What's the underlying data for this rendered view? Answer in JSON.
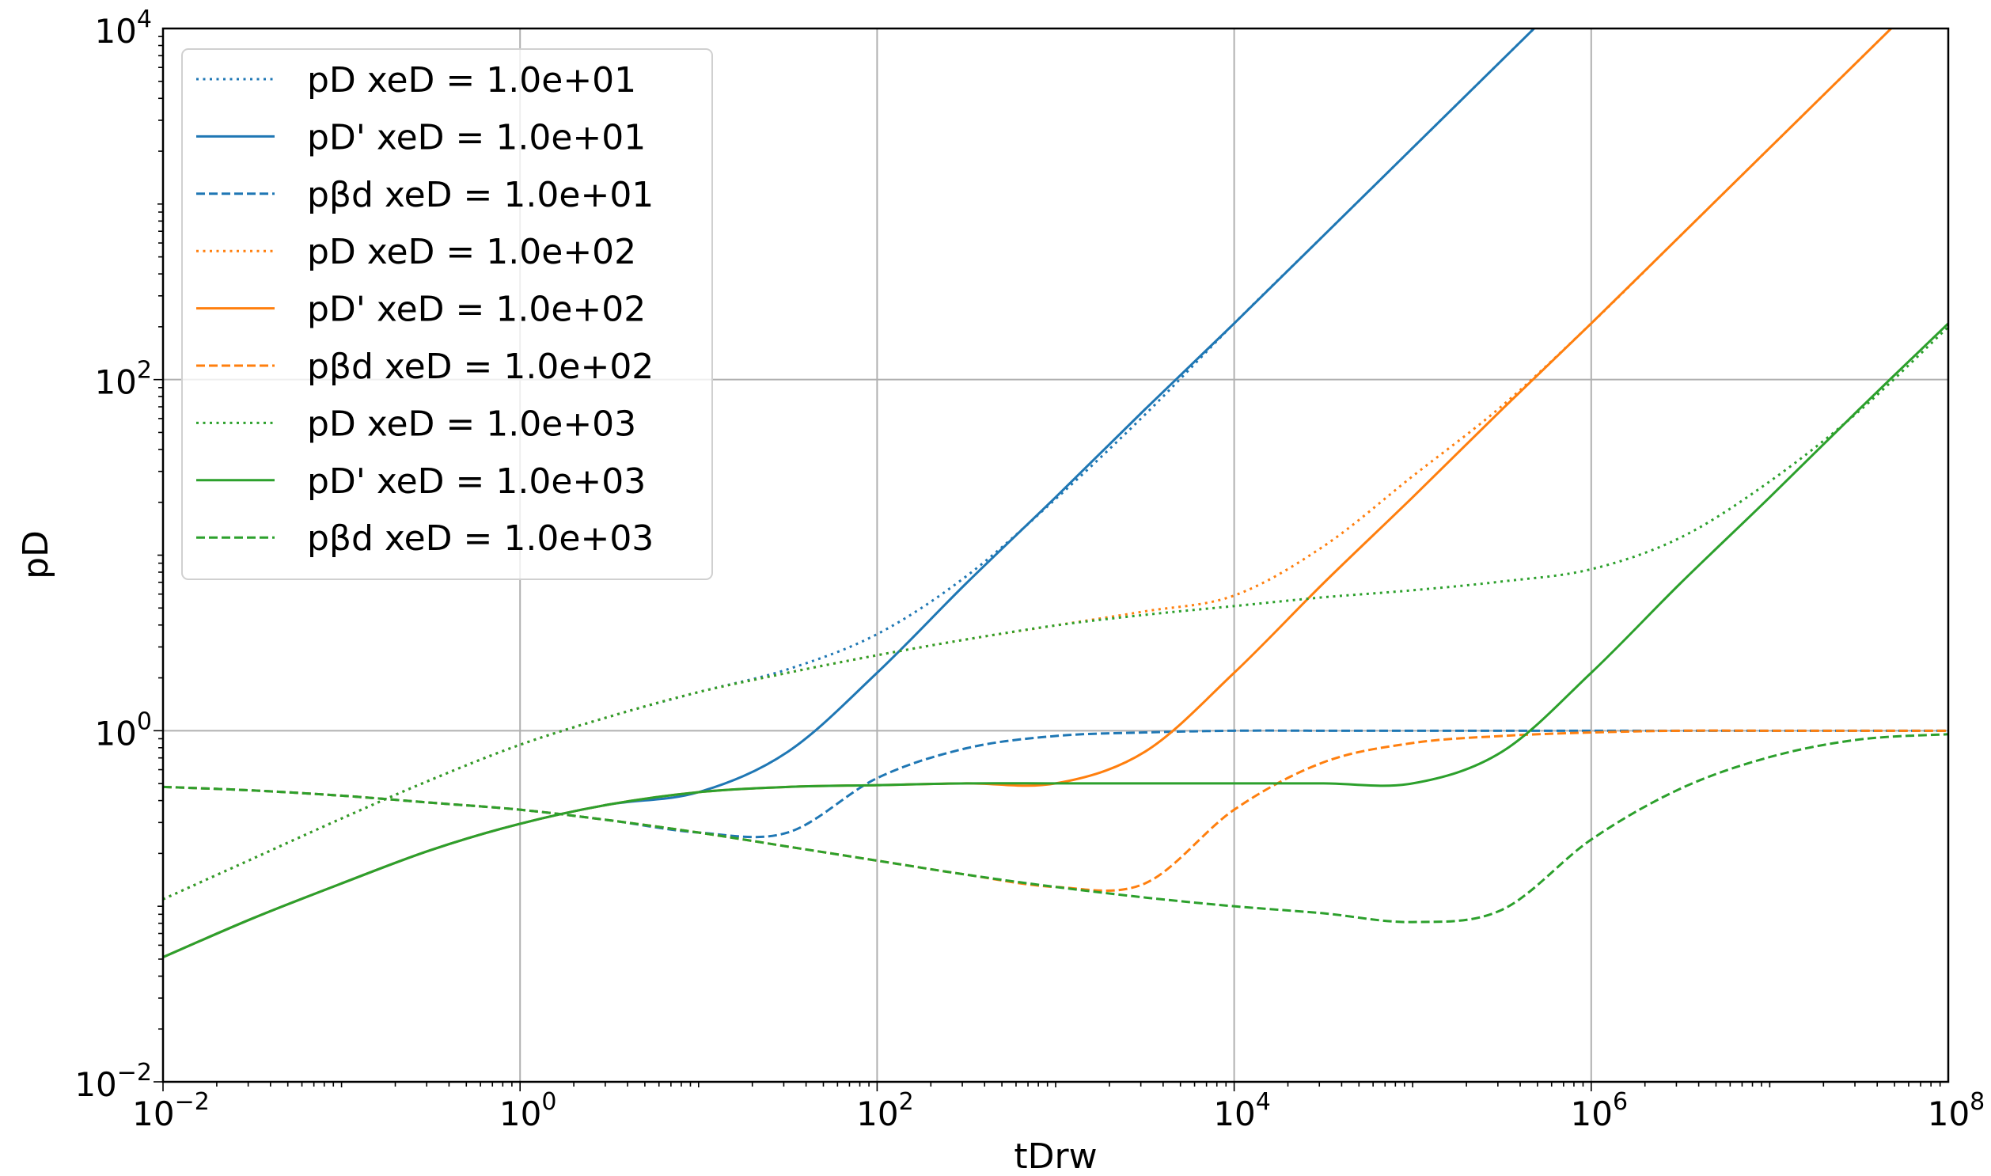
{
  "chart_data": {
    "type": "line",
    "title": "",
    "xlabel": "tDrw",
    "ylabel": "pD",
    "xscale": "log",
    "yscale": "log",
    "xlim": [
      0.01,
      100000000
    ],
    "ylim": [
      0.01,
      10000
    ],
    "grid": true,
    "legend_position": "top-left",
    "x_ticks": [
      {
        "base": "10",
        "exp": "−2",
        "value": 0.01
      },
      {
        "base": "10",
        "exp": "0",
        "value": 1
      },
      {
        "base": "10",
        "exp": "2",
        "value": 100
      },
      {
        "base": "10",
        "exp": "4",
        "value": 10000
      },
      {
        "base": "10",
        "exp": "6",
        "value": 1000000
      },
      {
        "base": "10",
        "exp": "8",
        "value": 100000000
      }
    ],
    "y_ticks": [
      {
        "base": "10",
        "exp": "−2",
        "value": 0.01
      },
      {
        "base": "10",
        "exp": "0",
        "value": 1
      },
      {
        "base": "10",
        "exp": "2",
        "value": 100
      },
      {
        "base": "10",
        "exp": "4",
        "value": 10000
      }
    ],
    "colors": {
      "blue": "#1f77b4",
      "orange": "#ff7f0e",
      "green": "#2ca02c"
    },
    "x": [
      0.01,
      0.0316,
      0.1,
      0.316,
      1,
      3.16,
      10,
      31.6,
      100,
      316,
      1000,
      3162,
      10000,
      31623,
      100000,
      316228,
      1000000,
      3162278,
      10000000,
      31622777,
      100000000
    ],
    "series": [
      {
        "name": "pD xeD = 1.0e+01",
        "color": "#1f77b4",
        "style": "dotted",
        "log10_values": [
          -0.96,
          -0.73,
          -0.5,
          -0.28,
          -0.08,
          0.08,
          0.22,
          0.35,
          0.55,
          0.88,
          1.32,
          1.8,
          2.32,
          2.82,
          3.32,
          3.82,
          4.32,
          4.82,
          5.32,
          5.82,
          6.32
        ]
      },
      {
        "name": "pD' xeD = 1.0e+01",
        "color": "#1f77b4",
        "style": "solid",
        "log10_values": [
          -1.29,
          -1.07,
          -0.87,
          -0.68,
          -0.53,
          -0.42,
          -0.35,
          -0.12,
          0.33,
          0.84,
          1.33,
          1.83,
          2.32,
          2.82,
          3.32,
          3.82,
          4.32,
          4.82,
          5.32,
          5.82,
          6.32
        ]
      },
      {
        "name": "pβd xeD = 1.0e+01",
        "color": "#1f77b4",
        "style": "dashed",
        "log10_values": [
          -0.32,
          -0.34,
          -0.37,
          -0.41,
          -0.45,
          -0.51,
          -0.58,
          -0.58,
          -0.27,
          -0.1,
          -0.03,
          -0.01,
          0,
          0,
          0,
          0,
          0,
          0,
          0,
          0,
          0
        ]
      },
      {
        "name": "pD xeD = 1.0e+02",
        "color": "#ff7f0e",
        "style": "dotted",
        "log10_values": [
          -0.96,
          -0.73,
          -0.5,
          -0.28,
          -0.08,
          0.08,
          0.22,
          0.33,
          0.43,
          0.52,
          0.6,
          0.68,
          0.77,
          1.05,
          1.45,
          1.85,
          2.32,
          2.82,
          3.32,
          3.82,
          4.32
        ]
      },
      {
        "name": "pD' xeD = 1.0e+02",
        "color": "#ff7f0e",
        "style": "solid",
        "log10_values": [
          -1.29,
          -1.07,
          -0.87,
          -0.68,
          -0.53,
          -0.42,
          -0.35,
          -0.32,
          -0.31,
          -0.3,
          -0.3,
          -0.12,
          0.33,
          0.84,
          1.33,
          1.83,
          2.32,
          2.82,
          3.32,
          3.82,
          4.32
        ]
      },
      {
        "name": "pβd xeD = 1.0e+02",
        "color": "#ff7f0e",
        "style": "dashed",
        "log10_values": [
          -0.32,
          -0.34,
          -0.37,
          -0.41,
          -0.45,
          -0.51,
          -0.58,
          -0.66,
          -0.74,
          -0.82,
          -0.89,
          -0.87,
          -0.45,
          -0.18,
          -0.07,
          -0.03,
          -0.01,
          0,
          0,
          0,
          0
        ]
      },
      {
        "name": "pD xeD = 1.0e+03",
        "color": "#2ca02c",
        "style": "dotted",
        "log10_values": [
          -0.96,
          -0.73,
          -0.5,
          -0.28,
          -0.08,
          0.08,
          0.22,
          0.33,
          0.43,
          0.52,
          0.6,
          0.66,
          0.71,
          0.76,
          0.8,
          0.85,
          0.92,
          1.1,
          1.42,
          1.82,
          2.3
        ]
      },
      {
        "name": "pD' xeD = 1.0e+03",
        "color": "#2ca02c",
        "style": "solid",
        "log10_values": [
          -1.29,
          -1.07,
          -0.87,
          -0.68,
          -0.53,
          -0.42,
          -0.35,
          -0.32,
          -0.31,
          -0.3,
          -0.3,
          -0.3,
          -0.3,
          -0.3,
          -0.3,
          -0.12,
          0.33,
          0.84,
          1.33,
          1.83,
          2.32
        ]
      },
      {
        "name": "pβd xeD = 1.0e+03",
        "color": "#2ca02c",
        "style": "dashed",
        "log10_values": [
          -0.32,
          -0.34,
          -0.37,
          -0.41,
          -0.45,
          -0.51,
          -0.58,
          -0.66,
          -0.74,
          -0.82,
          -0.89,
          -0.95,
          -1.0,
          -1.04,
          -1.09,
          -1.02,
          -0.62,
          -0.33,
          -0.15,
          -0.05,
          -0.02
        ]
      }
    ]
  }
}
